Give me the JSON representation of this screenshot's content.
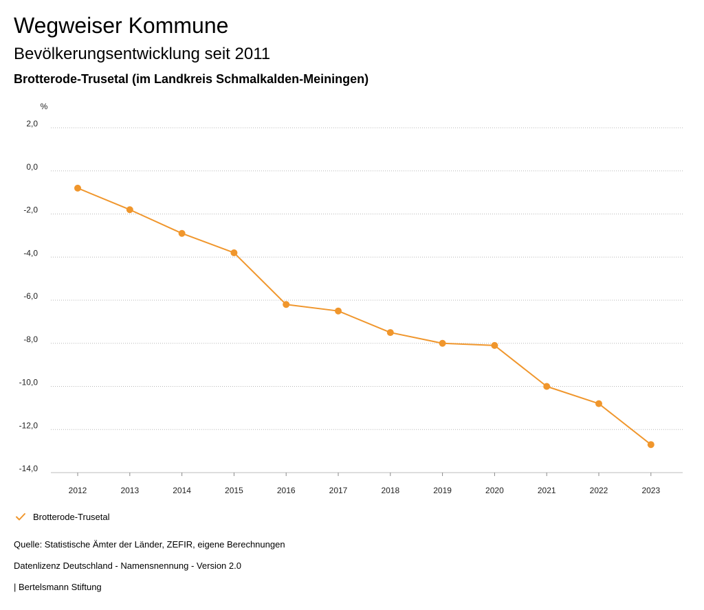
{
  "header": {
    "title": "Wegweiser Kommune",
    "subtitle": "Bevölkerungsentwicklung seit 2011",
    "region": "Brotterode-Trusetal (im Landkreis Schmalkalden-Meiningen)"
  },
  "chart_data": {
    "type": "line",
    "title": "Bevölkerungsentwicklung seit 2011",
    "ylabel": "%",
    "xlabel": "",
    "categories": [
      "2012",
      "2013",
      "2014",
      "2015",
      "2016",
      "2017",
      "2018",
      "2019",
      "2020",
      "2021",
      "2022",
      "2023"
    ],
    "series": [
      {
        "name": "Brotterode-Trusetal",
        "color": "#f0962c",
        "values": [
          -0.8,
          -1.8,
          -2.9,
          -3.8,
          -6.2,
          -6.5,
          -7.5,
          -8.0,
          -8.1,
          -10.0,
          -10.8,
          -12.7
        ]
      }
    ],
    "ylim": [
      -14,
      2
    ],
    "yticks": [
      2,
      0,
      -2,
      -4,
      -6,
      -8,
      -10,
      -12,
      -14
    ],
    "ytick_labels": [
      "2,0",
      "0,0",
      "-2,0",
      "-4,0",
      "-6,0",
      "-8,0",
      "-10,0",
      "-12,0",
      "-14,0"
    ],
    "grid": true,
    "legend_position": "bottom-left"
  },
  "legend": {
    "label": "Brotterode-Trusetal",
    "color": "#f0962c"
  },
  "footer": {
    "source": "Quelle: Statistische Ämter der Länder, ZEFIR, eigene Berechnungen",
    "license": "Datenlizenz Deutschland - Namensnennung - Version 2.0",
    "publisher": "| Bertelsmann Stiftung"
  }
}
